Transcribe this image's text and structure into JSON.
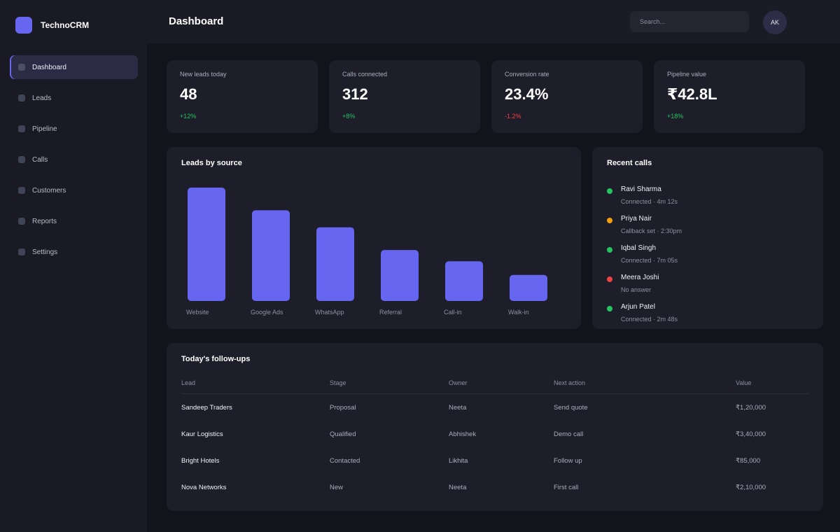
{
  "brand": {
    "name": "TechnoCRM"
  },
  "sidebar": {
    "items": [
      {
        "label": "Dashboard",
        "active": true
      },
      {
        "label": "Leads"
      },
      {
        "label": "Pipeline"
      },
      {
        "label": "Calls"
      },
      {
        "label": "Customers"
      },
      {
        "label": "Reports"
      },
      {
        "label": "Settings"
      }
    ]
  },
  "header": {
    "title": "Dashboard",
    "search_placeholder": "Search...",
    "avatar_initials": "AK"
  },
  "kpis": [
    {
      "label": "New leads today",
      "value": "48",
      "delta": "+12%",
      "trend": "up"
    },
    {
      "label": "Calls connected",
      "value": "312",
      "delta": "+8%",
      "trend": "up"
    },
    {
      "label": "Conversion rate",
      "value": "23.4%",
      "delta": "-1.2%",
      "trend": "down"
    },
    {
      "label": "Pipeline value",
      "value": "₹42.8L",
      "delta": "+18%",
      "trend": "up"
    }
  ],
  "leads_chart": {
    "title": "Leads by source"
  },
  "chart_data": {
    "type": "bar",
    "title": "Leads by source",
    "categories": [
      "Website",
      "Google Ads",
      "WhatsApp",
      "Referral",
      "Call-in",
      "Walk-in"
    ],
    "values": [
      100,
      80,
      65,
      45,
      35,
      23
    ],
    "ylim": [
      0,
      100
    ],
    "xlabel": "",
    "ylabel": "",
    "grid": false,
    "color": "#6666f0"
  },
  "recent_calls": {
    "title": "Recent calls",
    "items": [
      {
        "name": "Ravi Sharma",
        "status": "Connected · 4m 12s",
        "color": "#22c55e"
      },
      {
        "name": "Priya Nair",
        "status": "Callback set · 2:30pm",
        "color": "#f59e0b"
      },
      {
        "name": "Iqbal Singh",
        "status": "Connected · 7m 05s",
        "color": "#22c55e"
      },
      {
        "name": "Meera Joshi",
        "status": "No answer",
        "color": "#ef4444"
      },
      {
        "name": "Arjun Patel",
        "status": "Connected · 2m 48s",
        "color": "#22c55e"
      }
    ]
  },
  "followups": {
    "title": "Today's follow-ups",
    "columns": [
      "Lead",
      "Stage",
      "Owner",
      "Next action",
      "Value"
    ],
    "rows": [
      [
        "Sandeep Traders",
        "Proposal",
        "Neeta",
        "Send quote",
        "₹1,20,000"
      ],
      [
        "Kaur Logistics",
        "Qualified",
        "Abhishek",
        "Demo call",
        "₹3,40,000"
      ],
      [
        "Bright Hotels",
        "Contacted",
        "Likhita",
        "Follow up",
        "₹85,000"
      ],
      [
        "Nova Networks",
        "New",
        "Neeta",
        "First call",
        "₹2,10,000"
      ]
    ]
  },
  "colors": {
    "accent": "#6666f0",
    "positive": "#22c55e",
    "negative": "#ef4444",
    "warning": "#f59e0b"
  }
}
